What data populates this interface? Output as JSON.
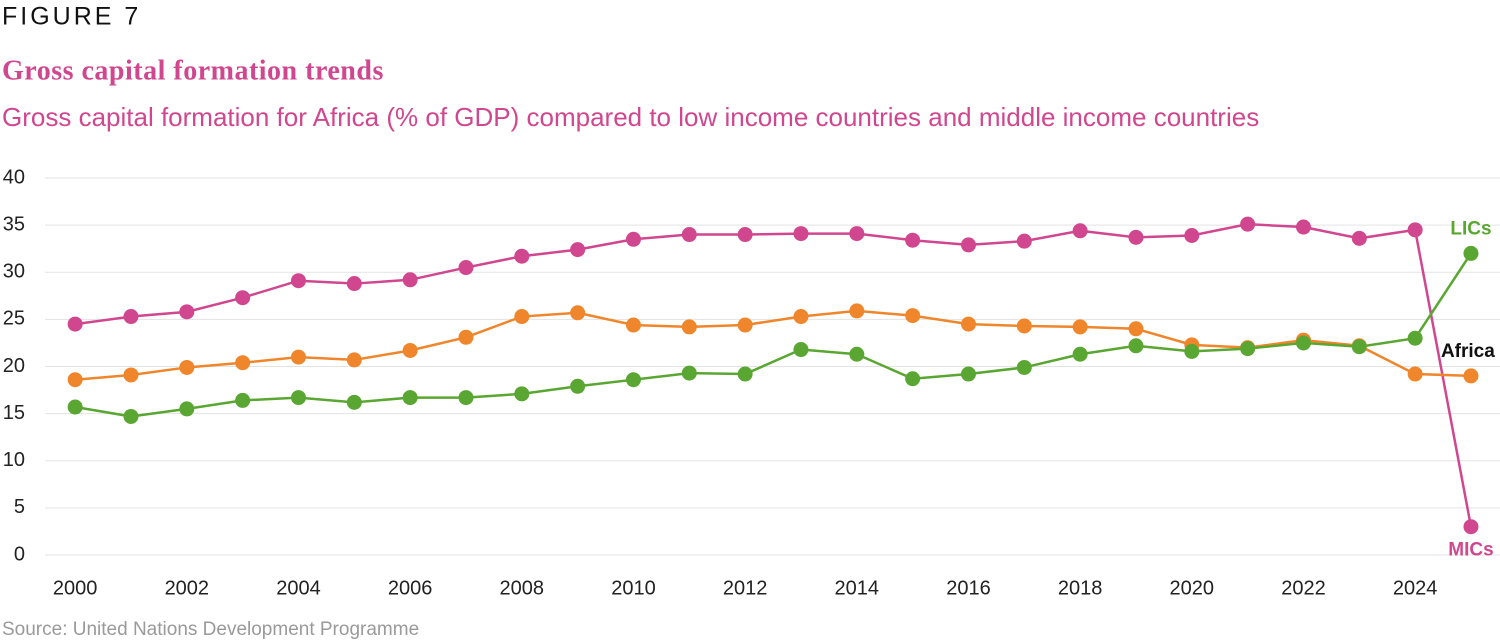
{
  "chart_data": {
    "type": "line",
    "figure_label": "FIGURE 7",
    "title": "Gross capital formation trends",
    "subtitle": "Gross capital formation for Africa (% of GDP) compared to low income countries and middle income countries",
    "source": "Source: United Nations Development Programme",
    "x": [
      2000,
      2001,
      2002,
      2003,
      2004,
      2005,
      2006,
      2007,
      2008,
      2009,
      2010,
      2011,
      2012,
      2013,
      2014,
      2015,
      2016,
      2017,
      2018,
      2019,
      2020,
      2021,
      2022,
      2023,
      2024,
      2025
    ],
    "xlim": [
      1999.46,
      2025.52
    ],
    "xticks": [
      2000,
      2002,
      2004,
      2006,
      2008,
      2010,
      2012,
      2014,
      2016,
      2018,
      2020,
      2022,
      2024
    ],
    "ylim": [
      0,
      40
    ],
    "yticks": [
      0,
      5,
      10,
      15,
      20,
      25,
      30,
      35,
      40
    ],
    "grid": true,
    "series": [
      {
        "name": "MICs",
        "color": "#d0478f",
        "label_color": "#d0478f",
        "values": [
          24.5,
          25.3,
          25.8,
          27.3,
          29.1,
          28.8,
          29.2,
          30.5,
          31.7,
          32.4,
          33.5,
          34.0,
          34.0,
          34.1,
          34.1,
          33.4,
          32.9,
          33.3,
          34.4,
          33.7,
          33.9,
          35.1,
          34.8,
          33.6,
          34.5,
          3.0
        ]
      },
      {
        "name": "Africa",
        "color": "#f0862b",
        "label_color": "#111111",
        "values": [
          18.6,
          19.1,
          19.9,
          20.4,
          21.0,
          20.7,
          21.7,
          23.1,
          25.3,
          25.7,
          24.4,
          24.2,
          24.4,
          25.3,
          25.9,
          25.4,
          24.5,
          24.3,
          24.2,
          24.0,
          22.3,
          22.0,
          22.8,
          22.2,
          19.2,
          19.0
        ]
      },
      {
        "name": "LICs",
        "color": "#5aa632",
        "label_color": "#5aa632",
        "values": [
          15.7,
          14.7,
          15.5,
          16.4,
          16.7,
          16.2,
          16.7,
          16.7,
          17.1,
          17.9,
          18.6,
          19.3,
          19.2,
          21.8,
          21.3,
          18.7,
          19.2,
          19.9,
          21.3,
          22.2,
          21.6,
          21.9,
          22.5,
          22.1,
          23.0,
          32.0
        ]
      }
    ]
  }
}
